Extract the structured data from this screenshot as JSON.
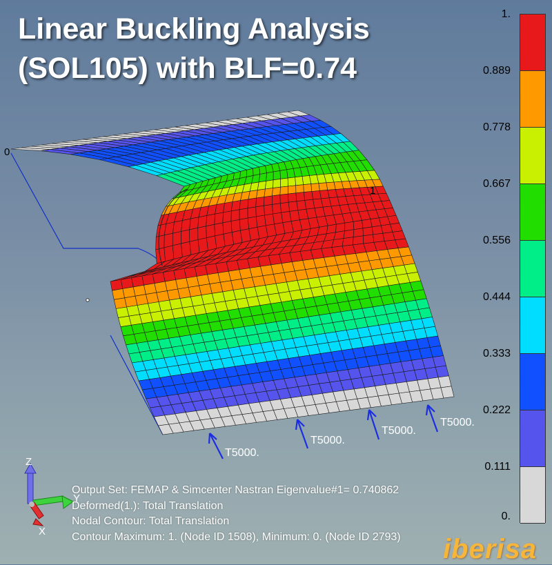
{
  "title": {
    "line1": "Linear Buckling Analysis",
    "line2": "(SOL105) with BLF=0.74"
  },
  "legend": {
    "ticks": [
      "1.",
      "0.889",
      "0.778",
      "0.667",
      "0.556",
      "0.444",
      "0.333",
      "0.222",
      "0.111",
      "0."
    ],
    "colors": [
      "#e8191b",
      "#ff9900",
      "#c8f000",
      "#22dd00",
      "#00ee88",
      "#00ddff",
      "#1050ff",
      "#5555ee",
      "#d8d8d8"
    ]
  },
  "model": {
    "node_label_left": "0",
    "node_label_right": "1",
    "loads": [
      "T5000.",
      "T5000.",
      "T5000.",
      "T5000."
    ]
  },
  "axes": {
    "z": "Z",
    "y": "Y",
    "x": "X"
  },
  "info": {
    "output_set": "Output Set: FEMAP & Simcenter Nastran Eigenvalue#1= 0.740862",
    "deformed": "Deformed(1.): Total Translation",
    "contour": "Nodal Contour: Total Translation",
    "min_max": "Contour Maximum: 1. (Node ID 1508), Minimum: 0. (Node ID 2793)"
  },
  "logo": {
    "text": "iberisa"
  }
}
